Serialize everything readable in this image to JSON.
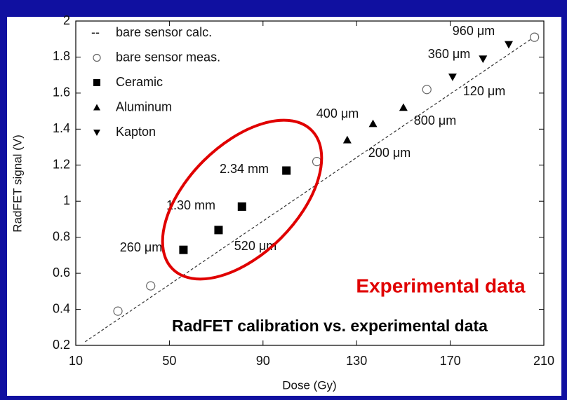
{
  "chart_data": {
    "type": "scatter",
    "xlabel": "Dose (Gy)",
    "ylabel": "RadFET signal (V)",
    "xlim": [
      10,
      210
    ],
    "ylim": [
      0.2,
      2
    ],
    "xticks": [
      10,
      50,
      90,
      130,
      170,
      210
    ],
    "yticks": [
      0.2,
      0.4,
      0.6,
      0.8,
      1,
      1.2,
      1.4,
      1.6,
      1.8,
      2
    ],
    "series": [
      {
        "name": "bare sensor calc.",
        "marker": "dashed-line",
        "color": "#333333",
        "x": [
          14,
          208
        ],
        "values": [
          0.22,
          1.93
        ]
      },
      {
        "name": "bare sensor meas.",
        "marker": "open-circle",
        "color": "#666666",
        "x": [
          28,
          42,
          113,
          160,
          206
        ],
        "values": [
          0.39,
          0.53,
          1.22,
          1.62,
          1.91
        ]
      },
      {
        "name": "Ceramic",
        "marker": "square",
        "color": "#000000",
        "x": [
          56,
          71,
          81,
          100
        ],
        "values": [
          0.73,
          0.84,
          0.97,
          1.17
        ]
      },
      {
        "name": "Aluminum",
        "marker": "triangle-up",
        "color": "#000000",
        "x": [
          126,
          137,
          150
        ],
        "values": [
          1.34,
          1.43,
          1.52
        ]
      },
      {
        "name": "Kapton",
        "marker": "triangle-down",
        "color": "#000000",
        "x": [
          171,
          184,
          195
        ],
        "values": [
          1.69,
          1.79,
          1.87
        ]
      }
    ],
    "annotations": [
      "960 μm",
      "360 μm",
      "120 μm",
      "400 μm",
      "800 μm",
      "200 μm",
      "2.34 mm",
      "1.30 mm",
      "520 μm",
      "260 μm"
    ],
    "highlight_text": "Experimental data",
    "caption": "RadFET calibration vs. experimental data"
  }
}
